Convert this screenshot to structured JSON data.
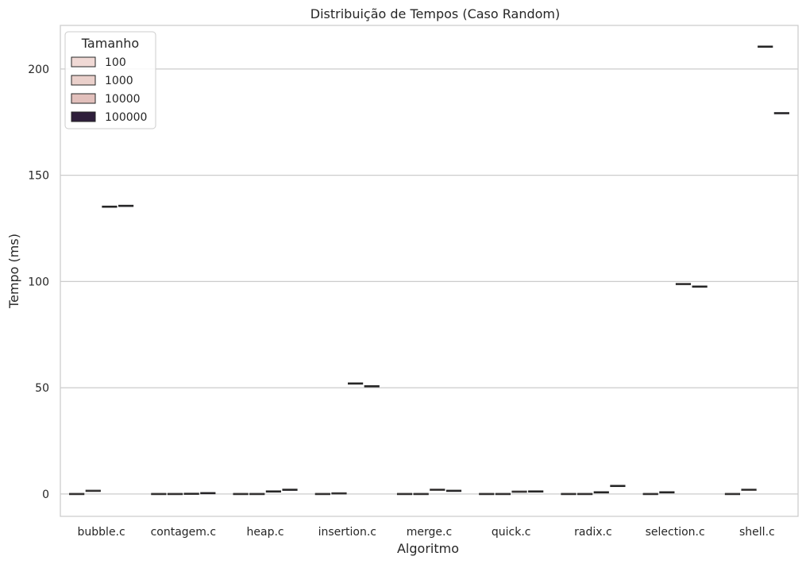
{
  "chart_data": {
    "type": "box",
    "title": "Distribuição de Tempos (Caso Random)",
    "xlabel": "Algoritmo",
    "ylabel": "Tempo (ms)",
    "ylim": [
      -10.5,
      220.5
    ],
    "yticks": [
      0,
      50,
      100,
      150,
      200
    ],
    "grid": "horizontal",
    "legend": {
      "title": "Tamanho",
      "placement": "top-left",
      "entries": [
        "100",
        "1000",
        "10000",
        "100000"
      ]
    },
    "series_colors": [
      "#f0d9d5",
      "#ead0cb",
      "#e2c0bc",
      "#2e1e3b"
    ],
    "categories": [
      "bubble.c",
      "contagem.c",
      "heap.c",
      "insertion.c",
      "merge.c",
      "quick.c",
      "radix.c",
      "selection.c",
      "shell.c"
    ],
    "series": [
      {
        "name": "100",
        "values": [
          0.0,
          0.0,
          0.0,
          0.0,
          0.0,
          0.0,
          0.0,
          0.0,
          0.0
        ]
      },
      {
        "name": "1000",
        "values": [
          1.5,
          0.0,
          0.0,
          0.3,
          0.0,
          0.0,
          0.0,
          0.8,
          2.0
        ]
      },
      {
        "name": "10000",
        "values": [
          135.2,
          0.1,
          1.2,
          52.0,
          2.0,
          1.1,
          0.8,
          98.8,
          210.5
        ]
      },
      {
        "name": "100000",
        "values": [
          135.6,
          0.4,
          2.0,
          50.7,
          1.5,
          1.2,
          3.8,
          97.6,
          179.2
        ]
      }
    ]
  }
}
